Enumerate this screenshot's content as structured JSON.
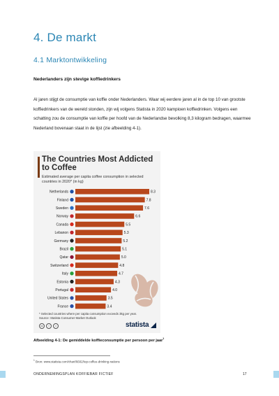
{
  "document": {
    "heading": "4. De markt",
    "subheading": "4.1 Marktontwikkeling",
    "section_title": "Nederlanders zijn stevige koffiedrinkers",
    "paragraph": "Al jaren stijgt de consumptie van koffie onder Nederlanders. Waar wij eerdere jaren al in de top 10 van grootste koffiedrinkers van de wereld stonden, zijn wij volgens Statista in 2020 kampioen koffiedrinken. Volgens een schatting zou de consumptie van koffie per hoofd van de Nederlandse bevolking 8,3 kilogram bedragen, waarmee Nederland bovenaan staat in de lijst (zie afbeelding 4-1).",
    "caption": "Afbeelding 4-1: De gemiddelde koffieconsumptie per persoon per jaar",
    "caption_ref": "1",
    "footnote_ref": "1",
    "footnote": "Bron: www.statista.com/chart/6602/top-coffee-drinking-nations",
    "footer_left": "ONDERNEMINGSPLAN KOFFIEBAR FICTIEF",
    "page_number": "17"
  },
  "chart_data": {
    "type": "bar",
    "orientation": "horizontal",
    "title": "The Countries Most Addicted to Coffee",
    "subtitle": "Estimated average per capita coffee consumption in selected countries in 2020* (in kg)",
    "categories": [
      "Netherlands",
      "Finland",
      "Sweden",
      "Norway",
      "Canada",
      "Lebanon",
      "Germany",
      "Brazil",
      "Qatar",
      "Switzerland",
      "Italy",
      "Estonia",
      "Portugal",
      "United States",
      "France"
    ],
    "values": [
      8.3,
      7.8,
      7.6,
      6.6,
      5.5,
      5.3,
      5.2,
      5.1,
      5.0,
      4.8,
      4.7,
      4.3,
      4.0,
      3.5,
      3.4
    ],
    "value_labels": [
      "8.3",
      "7.8",
      "7.6",
      "6.6",
      "5.5",
      "5.3",
      "5.2",
      "5.1",
      "5.0",
      "4.8",
      "4.7",
      "4.3",
      "4.0",
      "3.5",
      "3.4"
    ],
    "xlim": [
      0,
      8.3
    ],
    "bar_color": "#b8471c",
    "flag_colors": [
      "#1e4fa3",
      "#1e4fa3",
      "#2a6cc0",
      "#c0272d",
      "#d52b1e",
      "#c0272d",
      "#222222",
      "#2a9d3a",
      "#8a1538",
      "#d52b1e",
      "#2a9d3a",
      "#222222",
      "#c0272d",
      "#2a4fa3",
      "#2a4fa3"
    ],
    "note": "* Selected countries where per capita consumption exceeds 3kg per year.",
    "source": "Source: Statista Consumer Market Outlook",
    "brand": "statista",
    "license_icons": [
      "cc-icon",
      "by-icon",
      "nd-icon"
    ],
    "license_labels": [
      "cc",
      "i",
      "="
    ]
  }
}
